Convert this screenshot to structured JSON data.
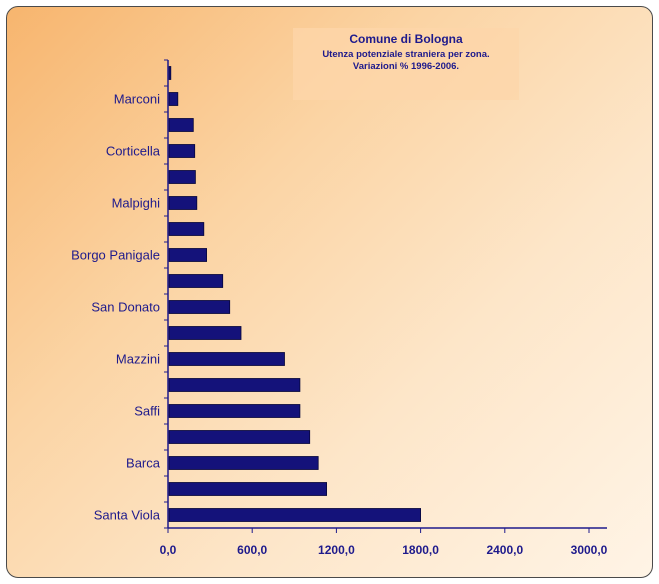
{
  "chart_data": {
    "type": "bar",
    "orientation": "horizontal",
    "title": "Comune di Bologna",
    "subtitle": [
      "Utenza potenziale straniera per zona.",
      "Variazioni % 1996-2006."
    ],
    "categories": [
      "",
      "Marconi",
      "",
      "Corticella",
      "",
      "Malpighi",
      "",
      "Borgo Panigale",
      "",
      "San Donato",
      "",
      "Mazzini",
      "",
      "Saffi",
      "",
      "Barca",
      "",
      "Santa Viola"
    ],
    "values": [
      20,
      70,
      180,
      190,
      195,
      205,
      255,
      275,
      390,
      440,
      520,
      830,
      940,
      940,
      1010,
      1070,
      1130,
      1800
    ],
    "x_ticks": [
      "0,0",
      "600,0",
      "1200,0",
      "1800,0",
      "2400,0",
      "3000,0"
    ],
    "xlim": [
      0,
      3000
    ],
    "grid": false,
    "colors": {
      "bar": "#14127a",
      "bar_edge": "#05053a",
      "text": "#1e1a8c",
      "axis": "#1e1a8c"
    }
  }
}
